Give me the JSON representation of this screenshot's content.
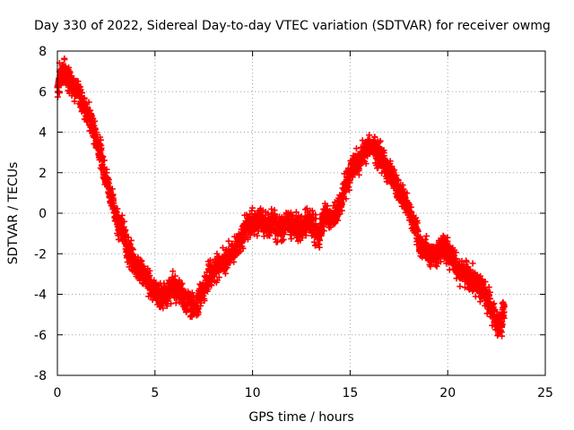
{
  "chart_data": {
    "type": "scatter",
    "title": "Day 330 of 2022, Sidereal Day-to-day VTEC variation (SDTVAR) for receiver owmg",
    "xlabel": "GPS time / hours",
    "ylabel": "SDTVAR / TECUs",
    "xlim": [
      0,
      25
    ],
    "ylim": [
      -8,
      8
    ],
    "xticks": [
      0,
      5,
      10,
      15,
      20,
      25
    ],
    "yticks": [
      -8,
      -6,
      -4,
      -2,
      0,
      2,
      4,
      6,
      8
    ],
    "grid": true,
    "marker": "+",
    "color": "#ff0000",
    "series": [
      {
        "name": "SDTVAR",
        "x": [
          0.0,
          0.2,
          0.4,
          0.7,
          1.0,
          1.3,
          1.6,
          1.9,
          2.2,
          2.5,
          2.8,
          3.1,
          3.4,
          3.6,
          3.8,
          4.1,
          4.4,
          4.7,
          5.0,
          5.3,
          5.6,
          5.9,
          6.2,
          6.5,
          6.8,
          7.1,
          7.4,
          7.7,
          8.0,
          8.3,
          8.6,
          8.9,
          9.2,
          9.5,
          9.8,
          10.1,
          10.4,
          10.7,
          11.0,
          11.3,
          11.6,
          11.9,
          12.2,
          12.5,
          12.8,
          13.1,
          13.4,
          13.7,
          14.0,
          14.3,
          14.6,
          14.9,
          15.2,
          15.5,
          15.8,
          16.1,
          16.4,
          16.7,
          17.0,
          17.3,
          17.6,
          17.9,
          18.2,
          18.5,
          18.8,
          19.1,
          19.4,
          19.7,
          20.0,
          20.3,
          20.6,
          20.9,
          21.2,
          21.5,
          21.8,
          22.1,
          22.4,
          22.7,
          22.9
        ],
        "y": [
          6.2,
          7.0,
          6.9,
          6.6,
          6.0,
          5.5,
          4.8,
          4.0,
          3.0,
          1.8,
          0.6,
          -0.4,
          -1.0,
          -1.8,
          -2.2,
          -2.6,
          -3.0,
          -3.4,
          -3.8,
          -4.2,
          -4.0,
          -3.6,
          -3.8,
          -4.2,
          -4.4,
          -4.8,
          -3.8,
          -3.2,
          -2.8,
          -2.4,
          -2.4,
          -2.0,
          -1.6,
          -1.0,
          -0.6,
          -0.4,
          -0.4,
          -0.6,
          -0.4,
          -0.8,
          -0.6,
          -0.4,
          -0.6,
          -0.8,
          -0.4,
          -0.6,
          -1.2,
          0.0,
          -0.4,
          0.0,
          0.8,
          1.8,
          2.4,
          2.6,
          3.2,
          3.4,
          3.0,
          2.6,
          2.0,
          1.6,
          1.0,
          0.4,
          -0.4,
          -1.4,
          -1.8,
          -2.0,
          -2.0,
          -1.6,
          -1.8,
          -2.4,
          -2.8,
          -3.0,
          -3.2,
          -3.4,
          -3.8,
          -4.4,
          -5.2,
          -5.6,
          -4.6
        ]
      }
    ]
  }
}
